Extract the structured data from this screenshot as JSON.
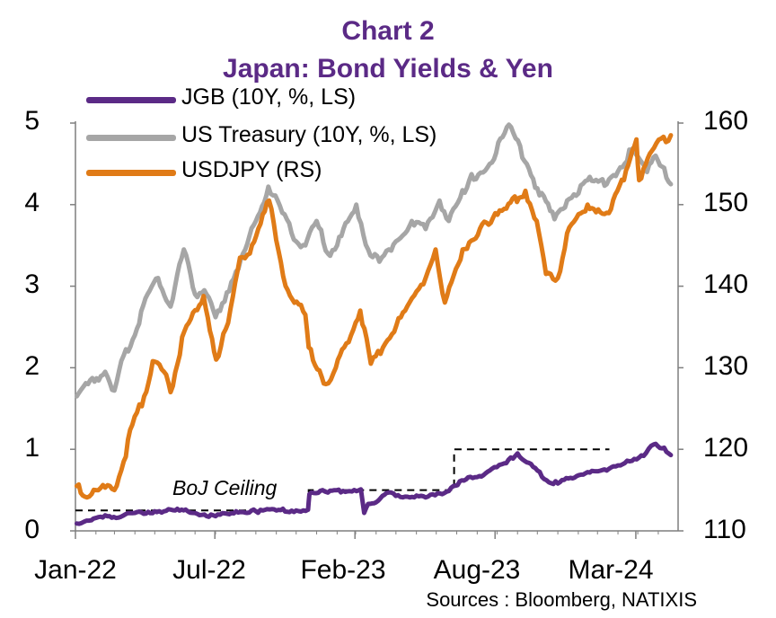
{
  "title": "Chart 2",
  "subtitle": "Japan: Bond Yields & Yen",
  "source": "Sources : Bloomberg, NATIXIS",
  "annotation": "BoJ Ceiling",
  "legend": [
    {
      "label": "JGB (10Y, %, LS)",
      "color": "#5b2a86"
    },
    {
      "label": "US Treasury (10Y, %, LS)",
      "color": "#a6a6a6"
    },
    {
      "label": "USDJPY (RS)",
      "color": "#e07b17"
    }
  ],
  "chart_data": {
    "type": "line",
    "title": "Japan: Bond Yields & Yen",
    "xlabel": "",
    "x_ticks": [
      "Jan-22",
      "Jul-22",
      "Feb-23",
      "Aug-23",
      "Mar-24"
    ],
    "y_left": {
      "ticks": [
        "0",
        "1",
        "2",
        "3",
        "4",
        "5"
      ],
      "ylim": [
        0,
        5
      ]
    },
    "y_right": {
      "ticks": [
        "110",
        "120",
        "130",
        "140",
        "150",
        "160"
      ],
      "ylim": [
        110,
        160
      ]
    },
    "series": [
      {
        "name": "JGB (10Y, %, LS)",
        "axis": "left",
        "color": "#5b2a86",
        "points": [
          [
            "2022-01-03",
            0.09
          ],
          [
            "2022-01-25",
            0.13
          ],
          [
            "2022-02-15",
            0.19
          ],
          [
            "2022-03-10",
            0.17
          ],
          [
            "2022-04-01",
            0.22
          ],
          [
            "2022-05-01",
            0.24
          ],
          [
            "2022-06-01",
            0.25
          ],
          [
            "2022-06-20",
            0.24
          ],
          [
            "2022-07-15",
            0.2
          ],
          [
            "2022-08-01",
            0.18
          ],
          [
            "2022-09-01",
            0.24
          ],
          [
            "2022-10-01",
            0.24
          ],
          [
            "2022-11-01",
            0.25
          ],
          [
            "2022-12-01",
            0.25
          ],
          [
            "2022-12-19",
            0.26
          ],
          [
            "2022-12-21",
            0.45
          ],
          [
            "2023-01-10",
            0.5
          ],
          [
            "2023-01-18",
            0.47
          ],
          [
            "2023-02-10",
            0.49
          ],
          [
            "2023-03-09",
            0.51
          ],
          [
            "2023-03-14",
            0.22
          ],
          [
            "2023-03-20",
            0.33
          ],
          [
            "2023-04-01",
            0.35
          ],
          [
            "2023-04-20",
            0.47
          ],
          [
            "2023-05-15",
            0.42
          ],
          [
            "2023-06-15",
            0.41
          ],
          [
            "2023-07-10",
            0.45
          ],
          [
            "2023-07-27",
            0.55
          ],
          [
            "2023-08-15",
            0.63
          ],
          [
            "2023-09-01",
            0.66
          ],
          [
            "2023-09-20",
            0.74
          ],
          [
            "2023-10-15",
            0.83
          ],
          [
            "2023-11-01",
            0.95
          ],
          [
            "2023-11-15",
            0.84
          ],
          [
            "2023-12-01",
            0.74
          ],
          [
            "2023-12-15",
            0.62
          ],
          [
            "2024-01-01",
            0.58
          ],
          [
            "2024-01-20",
            0.65
          ],
          [
            "2024-02-15",
            0.72
          ],
          [
            "2024-03-15",
            0.74
          ],
          [
            "2024-04-15",
            0.86
          ],
          [
            "2024-05-10",
            0.92
          ],
          [
            "2024-05-25",
            1.06
          ],
          [
            "2024-06-10",
            1.02
          ],
          [
            "2024-06-20",
            0.93
          ]
        ]
      },
      {
        "name": "US Treasury (10Y, %, LS)",
        "axis": "left",
        "color": "#a6a6a6",
        "points": [
          [
            "2022-01-03",
            1.65
          ],
          [
            "2022-01-20",
            1.8
          ],
          [
            "2022-02-15",
            1.95
          ],
          [
            "2022-03-01",
            1.72
          ],
          [
            "2022-03-15",
            2.15
          ],
          [
            "2022-04-01",
            2.4
          ],
          [
            "2022-04-20",
            2.9
          ],
          [
            "2022-05-06",
            3.1
          ],
          [
            "2022-05-25",
            2.75
          ],
          [
            "2022-06-14",
            3.45
          ],
          [
            "2022-07-01",
            2.9
          ],
          [
            "2022-07-15",
            2.95
          ],
          [
            "2022-08-01",
            2.62
          ],
          [
            "2022-08-25",
            3.05
          ],
          [
            "2022-09-15",
            3.45
          ],
          [
            "2022-10-01",
            3.8
          ],
          [
            "2022-10-20",
            4.22
          ],
          [
            "2022-11-10",
            3.9
          ],
          [
            "2022-12-01",
            3.55
          ],
          [
            "2022-12-15",
            3.5
          ],
          [
            "2023-01-01",
            3.8
          ],
          [
            "2023-01-18",
            3.4
          ],
          [
            "2023-02-01",
            3.5
          ],
          [
            "2023-03-02",
            4.0
          ],
          [
            "2023-03-20",
            3.45
          ],
          [
            "2023-04-06",
            3.3
          ],
          [
            "2023-05-01",
            3.55
          ],
          [
            "2023-05-25",
            3.8
          ],
          [
            "2023-06-15",
            3.7
          ],
          [
            "2023-07-06",
            4.05
          ],
          [
            "2023-07-20",
            3.8
          ],
          [
            "2023-08-20",
            4.3
          ],
          [
            "2023-09-20",
            4.5
          ],
          [
            "2023-10-19",
            4.98
          ],
          [
            "2023-11-15",
            4.5
          ],
          [
            "2023-12-01",
            4.2
          ],
          [
            "2023-12-27",
            3.82
          ],
          [
            "2024-01-15",
            4.05
          ],
          [
            "2024-02-15",
            4.3
          ],
          [
            "2024-03-15",
            4.25
          ],
          [
            "2024-04-25",
            4.7
          ],
          [
            "2024-05-15",
            4.4
          ],
          [
            "2024-05-28",
            4.6
          ],
          [
            "2024-06-10",
            4.45
          ],
          [
            "2024-06-20",
            4.25
          ]
        ]
      },
      {
        "name": "USDJPY (RS)",
        "axis": "right",
        "color": "#e07b17",
        "points": [
          [
            "2022-01-03",
            115.5
          ],
          [
            "2022-01-15",
            114.2
          ],
          [
            "2022-02-15",
            115.3
          ],
          [
            "2022-03-01",
            115.0
          ],
          [
            "2022-03-15",
            118.5
          ],
          [
            "2022-03-28",
            123.0
          ],
          [
            "2022-04-15",
            126.5
          ],
          [
            "2022-04-28",
            130.8
          ],
          [
            "2022-05-15",
            129.5
          ],
          [
            "2022-05-25",
            127.0
          ],
          [
            "2022-06-15",
            134.5
          ],
          [
            "2022-07-14",
            138.8
          ],
          [
            "2022-08-02",
            131.0
          ],
          [
            "2022-08-20",
            135.5
          ],
          [
            "2022-09-07",
            143.5
          ],
          [
            "2022-09-22",
            144.0
          ],
          [
            "2022-10-21",
            150.5
          ],
          [
            "2022-11-15",
            140.0
          ],
          [
            "2022-12-15",
            136.5
          ],
          [
            "2022-12-20",
            132.5
          ],
          [
            "2023-01-15",
            128.0
          ],
          [
            "2023-01-30",
            130.0
          ],
          [
            "2023-02-15",
            133.0
          ],
          [
            "2023-03-08",
            137.0
          ],
          [
            "2023-03-24",
            130.5
          ],
          [
            "2023-04-15",
            133.0
          ],
          [
            "2023-05-15",
            137.0
          ],
          [
            "2023-06-15",
            141.0
          ],
          [
            "2023-06-30",
            144.5
          ],
          [
            "2023-07-14",
            138.0
          ],
          [
            "2023-08-10",
            144.5
          ],
          [
            "2023-09-15",
            147.8
          ],
          [
            "2023-10-15",
            149.5
          ],
          [
            "2023-11-13",
            151.7
          ],
          [
            "2023-11-30",
            148.0
          ],
          [
            "2023-12-14",
            141.5
          ],
          [
            "2024-01-01",
            141.0
          ],
          [
            "2024-01-15",
            146.5
          ],
          [
            "2024-02-15",
            150.0
          ],
          [
            "2024-03-15",
            149.0
          ],
          [
            "2024-04-10",
            153.0
          ],
          [
            "2024-04-29",
            158.0
          ],
          [
            "2024-05-03",
            153.0
          ],
          [
            "2024-05-29",
            157.5
          ],
          [
            "2024-06-20",
            158.5
          ]
        ]
      }
    ],
    "annotations": [
      {
        "label": "BoJ Ceiling",
        "axis": "left",
        "style": "dashed",
        "steps": [
          {
            "from": "2022-01-01",
            "to": "2022-12-20",
            "value": 0.25
          },
          {
            "from": "2022-12-20",
            "to": "2023-07-28",
            "value": 0.5
          },
          {
            "from": "2023-07-28",
            "to": "2024-03-19",
            "value": 1.0
          }
        ]
      }
    ]
  }
}
